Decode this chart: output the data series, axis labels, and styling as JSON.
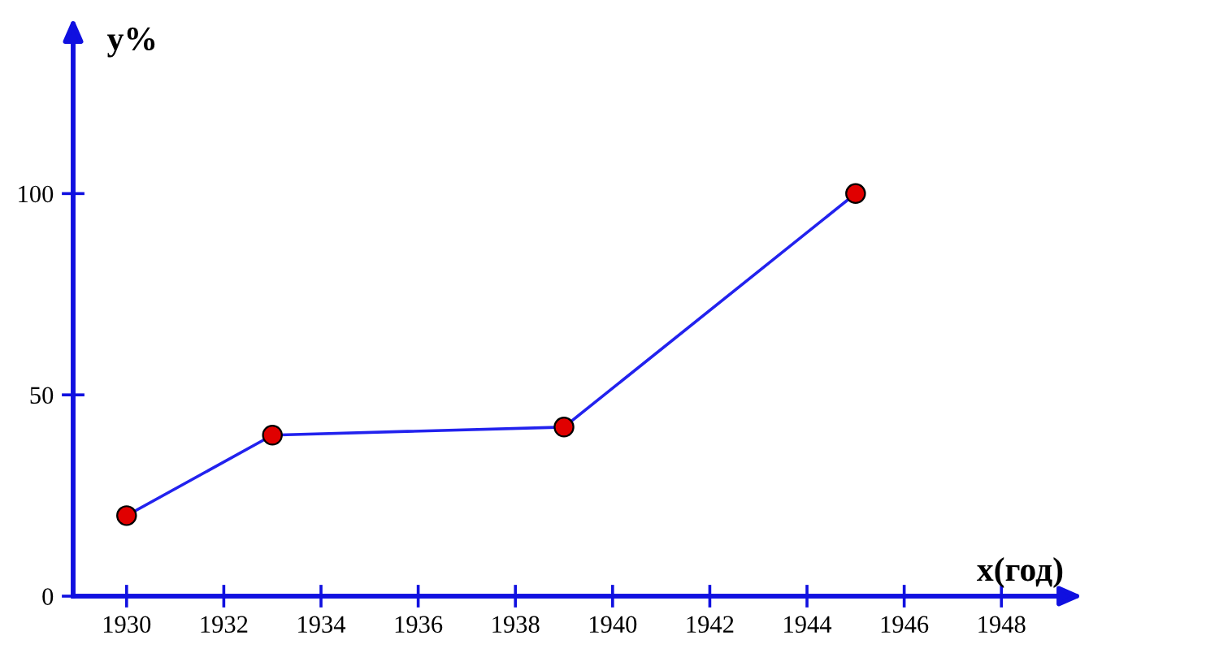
{
  "chart_data": {
    "type": "line",
    "xlabel": "x(год)",
    "ylabel": "y%",
    "x": [
      1930,
      1933,
      1939,
      1945
    ],
    "series": [
      {
        "color": "#2222ee",
        "colors": [
          "#e00000",
          "#e00000",
          "#e00000",
          "#e00000"
        ],
        "values": [
          20,
          40,
          42,
          100
        ]
      }
    ],
    "xlim": [
      1928.9,
      1949.2
    ],
    "ylim": [
      0,
      138
    ],
    "xticks": [
      1930,
      1932,
      1934,
      1936,
      1938,
      1940,
      1942,
      1944,
      1946,
      1948
    ],
    "yticks": [
      0,
      50,
      100
    ],
    "grid": false,
    "marker": "circle",
    "line_style": "solid"
  }
}
